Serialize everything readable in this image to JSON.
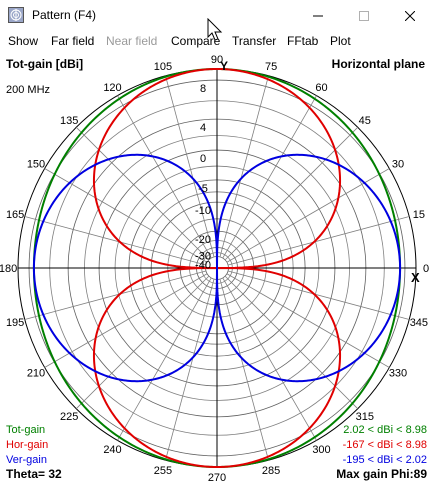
{
  "window": {
    "title": "Pattern    (F4)",
    "minimize_icon": "minimize-icon",
    "maximize_icon": "maximize-icon",
    "close_icon": "close-icon"
  },
  "menu": [
    {
      "label": "Show",
      "enabled": true
    },
    {
      "label": "Far field",
      "enabled": true
    },
    {
      "label": "Near field",
      "enabled": false
    },
    {
      "label": "Compare",
      "enabled": true
    },
    {
      "label": "Transfer",
      "enabled": true
    },
    {
      "label": "FFtab",
      "enabled": true
    },
    {
      "label": "Plot",
      "enabled": true
    }
  ],
  "plot": {
    "top_left": "Tot-gain [dBi]",
    "top_right": "Horizontal plane",
    "frequency": "200 MHz",
    "y_axis_label": "Y",
    "x_axis_label": "X",
    "theta": "Theta= 32",
    "max_gain": "Max gain Phi:89",
    "legend": [
      {
        "name": "Tot-gain",
        "range": "2.02 < dBi < 8.98",
        "color": "#008000"
      },
      {
        "name": "Hor-gain",
        "range": "-167 < dBi < 8.98",
        "color": "#e00000"
      },
      {
        "name": "Ver-gain",
        "range": "-195 < dBi < 2.02",
        "color": "#0000e0"
      }
    ]
  },
  "chart_data": {
    "type": "polar",
    "angle_ticks": [
      "0",
      "15",
      "30",
      "45",
      "60",
      "75",
      "90",
      "105",
      "120",
      "135",
      "150",
      "165",
      "180",
      "195",
      "210",
      "225",
      "240",
      "255",
      "270",
      "285",
      "300",
      "315",
      "330",
      "345"
    ],
    "radial_ticks": [
      "8",
      "4",
      "0",
      "-5",
      "-10",
      "-20",
      "-30",
      "-40"
    ],
    "radial_tick_values": [
      8,
      4,
      0,
      -5,
      -10,
      -20,
      -30,
      -40
    ],
    "max_gain_dbi": 8.98,
    "series": [
      {
        "name": "Tot-gain",
        "color": "#008000",
        "max_dbi": 8.98,
        "min_dbi": 2.02
      },
      {
        "name": "Hor-gain",
        "color": "#e00000",
        "max_dbi": 8.98,
        "min_dbi": -167
      },
      {
        "name": "Ver-gain",
        "color": "#0000e0",
        "max_dbi": 2.02,
        "min_dbi": -195
      }
    ]
  }
}
